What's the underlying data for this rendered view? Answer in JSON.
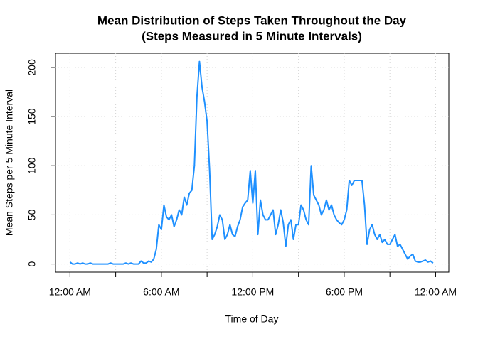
{
  "chart_data": {
    "type": "line",
    "title": "Mean Distribution of Steps Taken Throughout the Day",
    "subtitle": "(Steps Measured in 5 Minute Intervals)",
    "x_label": "Time of Day",
    "y_label": "Mean Steps per 5 Minute Interval",
    "x": [
      0,
      10,
      20,
      30,
      40,
      50,
      60,
      70,
      80,
      90,
      100,
      110,
      120,
      130,
      140,
      150,
      160,
      170,
      180,
      190,
      200,
      210,
      220,
      230,
      240,
      250,
      260,
      270,
      280,
      290,
      300,
      310,
      320,
      330,
      340,
      350,
      360,
      370,
      380,
      390,
      400,
      410,
      420,
      430,
      440,
      450,
      460,
      470,
      480,
      490,
      500,
      510,
      520,
      530,
      540,
      550,
      560,
      570,
      580,
      590,
      600,
      610,
      620,
      630,
      640,
      650,
      660,
      670,
      680,
      690,
      700,
      710,
      720,
      730,
      740,
      750,
      760,
      770,
      780,
      790,
      800,
      810,
      820,
      830,
      840,
      850,
      860,
      870,
      880,
      890,
      900,
      910,
      920,
      930,
      940,
      950,
      960,
      970,
      980,
      990,
      1000,
      1010,
      1020,
      1030,
      1040,
      1050,
      1060,
      1070,
      1080,
      1090,
      1100,
      1110,
      1120,
      1130,
      1140,
      1150,
      1160,
      1170,
      1180,
      1190,
      1200,
      1210,
      1220,
      1230,
      1240,
      1250,
      1260,
      1270,
      1280,
      1290,
      1300,
      1310,
      1320,
      1330,
      1340,
      1350,
      1360,
      1370,
      1380,
      1390,
      1400,
      1410,
      1420,
      1430
    ],
    "series": [
      {
        "color": "#1e90ff",
        "values": [
          2,
          0,
          0,
          1,
          0,
          1,
          0,
          0,
          1,
          0,
          0,
          0,
          0,
          0,
          0,
          0,
          1,
          0,
          0,
          0,
          0,
          0,
          1,
          0,
          1,
          0,
          0,
          0,
          3,
          1,
          1,
          3,
          2,
          5,
          15,
          40,
          35,
          60,
          48,
          45,
          50,
          38,
          45,
          55,
          50,
          68,
          60,
          72,
          75,
          100,
          170,
          206,
          180,
          165,
          145,
          95,
          25,
          30,
          38,
          50,
          45,
          25,
          30,
          40,
          30,
          28,
          38,
          45,
          58,
          62,
          65,
          95,
          62,
          95,
          30,
          65,
          50,
          45,
          45,
          50,
          55,
          30,
          40,
          55,
          42,
          18,
          40,
          45,
          25,
          40,
          40,
          60,
          55,
          45,
          40,
          100,
          70,
          65,
          60,
          50,
          55,
          65,
          55,
          60,
          50,
          45,
          42,
          40,
          45,
          55,
          85,
          80,
          85,
          85,
          85,
          85,
          60,
          20,
          35,
          40,
          30,
          25,
          30,
          22,
          25,
          20,
          20,
          25,
          30,
          18,
          20,
          15,
          10,
          5,
          8,
          10,
          3,
          2,
          2,
          3,
          4,
          2,
          3,
          1
        ]
      }
    ],
    "xlim": [
      -57,
      1492
    ],
    "ylim": [
      -8.25,
      214.4
    ],
    "xticks": [
      {
        "value": 0,
        "label": "12:00 AM"
      },
      {
        "value": 360,
        "label": "6:00 AM"
      },
      {
        "value": 720,
        "label": "12:00 PM"
      },
      {
        "value": 1080,
        "label": "6:00 PM"
      },
      {
        "value": 1440,
        "label": "12:00 AM"
      }
    ],
    "x_minor_ticks": [
      180,
      540,
      900,
      1260
    ],
    "yticks": [
      0,
      50,
      100,
      150,
      200
    ],
    "grid": true
  }
}
